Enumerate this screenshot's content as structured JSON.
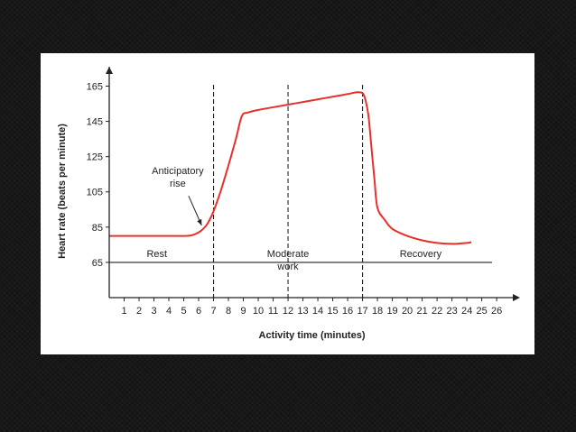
{
  "chart_data": {
    "type": "line",
    "title": "",
    "xlabel": "Activity time (minutes)",
    "ylabel": "Heart rate (beats per minute)",
    "xlim": [
      0,
      26.6
    ],
    "ylim": [
      45,
      176
    ],
    "x_ticks": [
      1,
      2,
      3,
      4,
      5,
      6,
      7,
      8,
      9,
      10,
      11,
      12,
      13,
      14,
      15,
      16,
      17,
      18,
      19,
      20,
      21,
      22,
      23,
      24,
      25,
      26
    ],
    "y_ticks": [
      65,
      85,
      105,
      125,
      145,
      165
    ],
    "grid": false,
    "legend": "none",
    "baseline_y": 65,
    "phase_dividers_x": [
      7,
      12,
      17
    ],
    "regions": [
      {
        "name": "rest",
        "label_lines": [
          "Rest"
        ],
        "x_center": 3.2
      },
      {
        "name": "moderate-work",
        "label_lines": [
          "Moderate",
          "work"
        ],
        "x_center": 12
      },
      {
        "name": "recovery",
        "label_lines": [
          "Recovery"
        ],
        "x_center": 20.9
      }
    ],
    "annotation": {
      "label_lines": [
        "Anticipatory",
        "rise"
      ],
      "x": 4.6,
      "y": 115,
      "arrow_to": [
        6.2,
        86
      ]
    },
    "series": [
      {
        "color": "#e8302a",
        "x": [
          0,
          1,
          2,
          3,
          4,
          5,
          5.5,
          6,
          6.3,
          6.6,
          7,
          7.5,
          8,
          8.5,
          8.9,
          9.3,
          10,
          11,
          12,
          13,
          14,
          15,
          16,
          16.6,
          17,
          17.2,
          17.4,
          17.6,
          17.8,
          18,
          18.5,
          19,
          20,
          21,
          22,
          23,
          24,
          24.3
        ],
        "y": [
          80,
          80,
          80,
          80,
          80,
          80,
          80.3,
          82,
          84,
          87,
          94,
          106,
          120,
          135,
          148,
          150,
          151.5,
          153,
          154.5,
          156,
          157.5,
          159,
          160.5,
          161.5,
          161,
          157,
          148,
          130,
          112,
          96,
          89,
          84,
          80,
          77.5,
          76,
          75.5,
          76,
          76.5
        ]
      }
    ]
  }
}
